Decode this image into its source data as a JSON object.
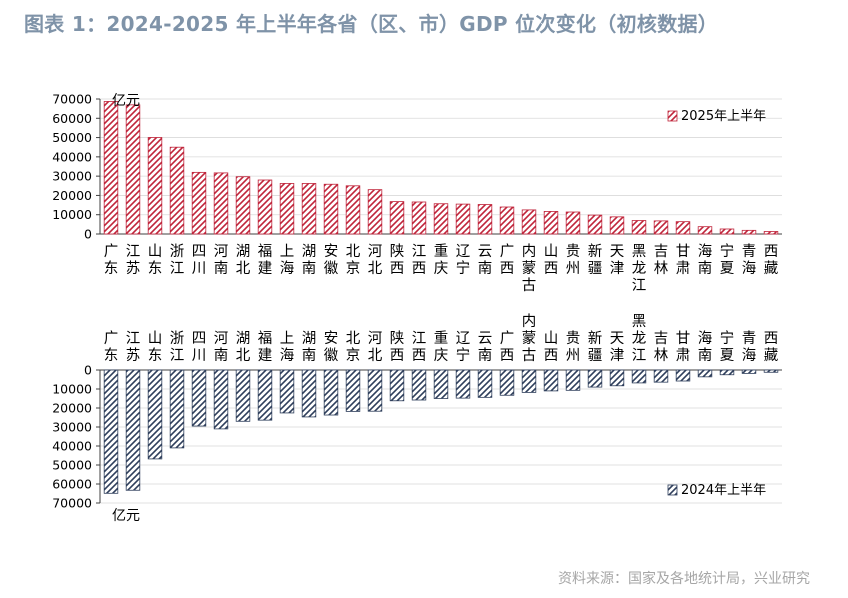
{
  "title": "图表 1：2024-2025 年上半年各省（区、市）GDP 位次变化（初核数据）",
  "source": "资料来源：国家及各地统计局，兴业研究",
  "colors": {
    "title": "#7f93a8",
    "source": "#a6a6a6",
    "series_2025": "#c0253b",
    "series_2024": "#2f3f5c",
    "axis": "#404040",
    "grid": "#d9d9d9"
  },
  "chart_data": [
    {
      "type": "bar",
      "unit": "亿元",
      "legend": "2025年上半年",
      "legend_position": "top-right",
      "grid": true,
      "ylim": [
        0,
        70000
      ],
      "yticks": [
        "70000",
        "60000",
        "50000",
        "40000",
        "30000",
        "20000",
        "10000",
        "0"
      ],
      "categories": [
        "广东",
        "江苏",
        "山东",
        "浙江",
        "四川",
        "河南",
        "湖北",
        "福建",
        "上海",
        "湖南",
        "安徽",
        "北京",
        "河北",
        "陕西",
        "江西",
        "重庆",
        "辽宁",
        "云南",
        "广西",
        "内蒙古",
        "山西",
        "贵州",
        "新疆",
        "天津",
        "黑龙江",
        "吉林",
        "甘肃",
        "海南",
        "宁夏",
        "青海",
        "西藏"
      ],
      "series": [
        {
          "name": "2025年上半年",
          "values": [
            68725,
            66967,
            50046,
            45004,
            31960,
            31680,
            29700,
            28000,
            26222,
            26200,
            25800,
            25000,
            23000,
            16800,
            16600,
            15700,
            15500,
            15300,
            14000,
            12500,
            11700,
            11400,
            9800,
            8900,
            7000,
            6800,
            6400,
            3800,
            2600,
            1900,
            1300
          ]
        }
      ]
    },
    {
      "type": "bar",
      "unit": "亿元",
      "legend": "2024年上半年",
      "legend_position": "bottom-right",
      "grid": true,
      "ylim": [
        0,
        70000
      ],
      "yticks": [
        "0",
        "10000",
        "20000",
        "30000",
        "40000",
        "50000",
        "60000",
        "70000"
      ],
      "categories": [
        "广东",
        "江苏",
        "山东",
        "浙江",
        "四川",
        "河南",
        "湖北",
        "福建",
        "上海",
        "湖南",
        "安徽",
        "北京",
        "河北",
        "陕西",
        "江西",
        "重庆",
        "辽宁",
        "云南",
        "广西",
        "内蒙古",
        "山西",
        "贵州",
        "新疆",
        "天津",
        "黑龙江",
        "吉林",
        "甘肃",
        "海南",
        "宁夏",
        "青海",
        "西藏"
      ],
      "series": [
        {
          "name": "2024年上半年",
          "values": [
            64900,
            63300,
            46800,
            41000,
            29500,
            31000,
            27000,
            26400,
            22600,
            24700,
            23700,
            21800,
            21700,
            16200,
            15800,
            15000,
            14800,
            14400,
            13300,
            11800,
            11000,
            10700,
            9000,
            8300,
            6800,
            6400,
            5800,
            3600,
            2500,
            1800,
            1200
          ]
        }
      ]
    }
  ]
}
